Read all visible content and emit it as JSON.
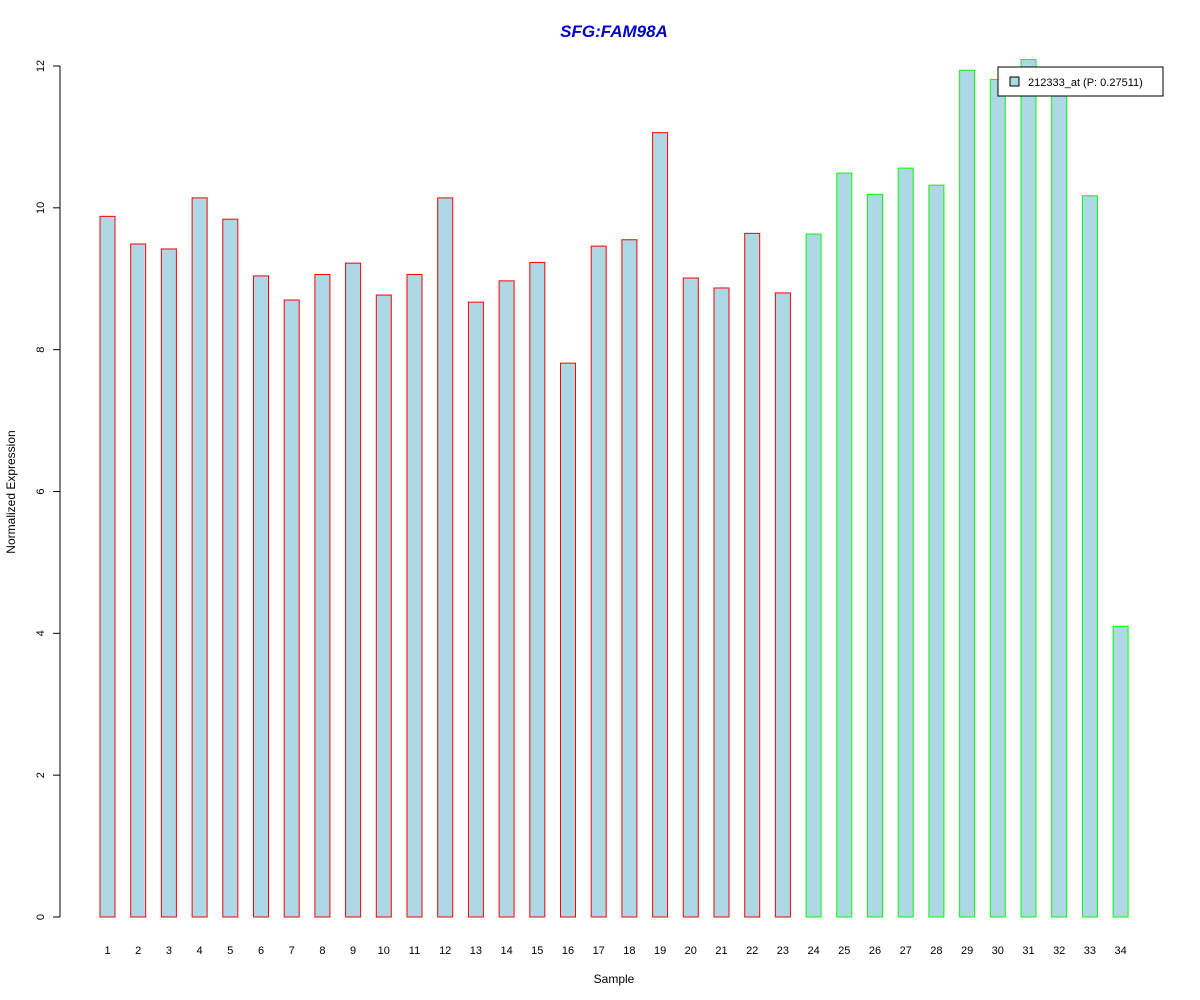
{
  "chart_data": {
    "type": "bar",
    "title": "SFG:FAM98A",
    "xlabel": "Sample",
    "ylabel": "Normalized Expression",
    "ylim": [
      0,
      12
    ],
    "yticks": [
      0,
      2,
      4,
      6,
      8,
      10,
      12
    ],
    "categories": [
      "1",
      "2",
      "3",
      "4",
      "5",
      "6",
      "7",
      "8",
      "9",
      "10",
      "11",
      "12",
      "13",
      "14",
      "15",
      "16",
      "17",
      "18",
      "19",
      "20",
      "21",
      "22",
      "23",
      "24",
      "25",
      "26",
      "27",
      "28",
      "29",
      "30",
      "31",
      "32",
      "33",
      "34"
    ],
    "series": [
      {
        "name": "212333_at (P: 0.27511)",
        "values": [
          9.88,
          9.49,
          9.42,
          10.14,
          9.84,
          9.04,
          8.7,
          9.06,
          9.22,
          8.77,
          9.06,
          10.14,
          8.67,
          8.97,
          9.23,
          7.81,
          9.46,
          9.55,
          11.06,
          9.01,
          8.87,
          9.64,
          8.8,
          9.63,
          10.49,
          10.19,
          10.56,
          10.32,
          11.94,
          11.81,
          12.09,
          11.72,
          10.17,
          4.1
        ]
      }
    ],
    "group_boundary_index": 23,
    "grid": false,
    "legend_position": "top-right"
  },
  "colors": {
    "bar_fill": "#ADD8E6",
    "group1_border": "#FF0000",
    "group2_border": "#00FF00",
    "title": "#0000CD",
    "axis": "#000000"
  }
}
